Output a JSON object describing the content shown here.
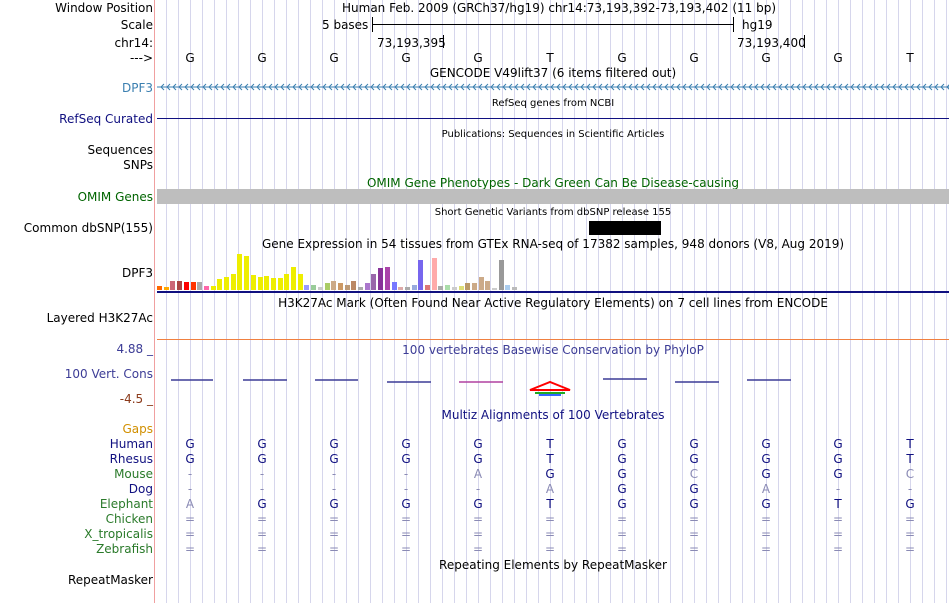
{
  "colors": {
    "dpf3_blue": "#3b7fb0",
    "navy": "#101080",
    "omim_green": "#006400",
    "gaps_orange": "#d18f00",
    "species_green": "#2a7a2a",
    "faint": "#7f7fa8",
    "conservation": "#3c3c96"
  },
  "labels": {
    "window_position": "Window Position",
    "scale": "Scale",
    "chrom": "chr14:",
    "arrow": "--->",
    "dpf3": "DPF3",
    "refseq_curated": "RefSeq Curated",
    "sequences": "Sequences",
    "snps": "SNPs",
    "omim_genes": "OMIM Genes",
    "common_dbsnp": "Common dbSNP(155)",
    "dpf3_expr": "DPF3",
    "layered_h3k27ac": "Layered H3K27Ac",
    "cons_max": "4.88 _",
    "cons_label": "100 Vert. Cons",
    "cons_min": "-4.5 _",
    "gaps": "Gaps",
    "repeatmasker": "RepeatMasker"
  },
  "header": {
    "position": "Human Feb. 2009 (GRCh37/hg19)   chr14:73,193,392-73,193,402 (11 bp)",
    "scale_text": "5 bases",
    "assembly": "hg19",
    "coord1": "73,193,395",
    "coord2": "73,193,400"
  },
  "bases": [
    "G",
    "G",
    "G",
    "G",
    "G",
    "T",
    "G",
    "G",
    "G",
    "G",
    "T"
  ],
  "tracks": {
    "gencode": "GENCODE V49lift37 (6 items filtered out)",
    "refseq": "RefSeq genes from NCBI",
    "publications": "Publications: Sequences in Scientific Articles",
    "omim": "OMIM Gene Phenotypes - Dark Green Can Be Disease-causing",
    "dbsnp": "Short Genetic Variants from dbSNP release 155",
    "gtex": "Gene Expression in 54 tissues from GTEx RNA-seq of 17382 samples, 948 donors (V8, Aug 2019)",
    "h3k27ac": "H3K27Ac Mark (Often Found Near Active Regulatory Elements) on 7 cell lines from ENCODE",
    "phylop": "100 vertebrates Basewise Conservation by PhyloP",
    "multiz": "Multiz Alignments of 100 Vertebrates",
    "rmsk": "Repeating Elements by RepeatMasker"
  },
  "gtex_bars": [
    {
      "h": 4,
      "c": "#ff6600"
    },
    {
      "h": 3,
      "c": "#ffaa00"
    },
    {
      "h": 9,
      "c": "#cc6677"
    },
    {
      "h": 9,
      "c": "#aa4444"
    },
    {
      "h": 8,
      "c": "#ff0000"
    },
    {
      "h": 8,
      "c": "#ff3300"
    },
    {
      "h": 8,
      "c": "#aaaaaa"
    },
    {
      "h": 4,
      "c": "#ff66aa"
    },
    {
      "h": 4,
      "c": "#eeee00"
    },
    {
      "h": 11,
      "c": "#eeee00"
    },
    {
      "h": 13,
      "c": "#eeee00"
    },
    {
      "h": 16,
      "c": "#eeee00"
    },
    {
      "h": 36,
      "c": "#eeee00"
    },
    {
      "h": 34,
      "c": "#eeee00"
    },
    {
      "h": 15,
      "c": "#eeee00"
    },
    {
      "h": 13,
      "c": "#eeee00"
    },
    {
      "h": 14,
      "c": "#eeee00"
    },
    {
      "h": 12,
      "c": "#eeee00"
    },
    {
      "h": 12,
      "c": "#eeee00"
    },
    {
      "h": 16,
      "c": "#eeee00"
    },
    {
      "h": 23,
      "c": "#eeee00"
    },
    {
      "h": 16,
      "c": "#eeee00"
    },
    {
      "h": 5,
      "c": "#9999ff"
    },
    {
      "h": 5,
      "c": "#99cc99"
    },
    {
      "h": 3,
      "c": "#cccccc"
    },
    {
      "h": 7,
      "c": "#aacc66"
    },
    {
      "h": 9,
      "c": "#ccaa88"
    },
    {
      "h": 7,
      "c": "#cc9966"
    },
    {
      "h": 5,
      "c": "#bb9977"
    },
    {
      "h": 9,
      "c": "#bb8866"
    },
    {
      "h": 3,
      "c": "#aaaaaa"
    },
    {
      "h": 7,
      "c": "#aa77cc"
    },
    {
      "h": 16,
      "c": "#9966aa"
    },
    {
      "h": 22,
      "c": "#883399"
    },
    {
      "h": 23,
      "c": "#aa44aa"
    },
    {
      "h": 8,
      "c": "#7777ff"
    },
    {
      "h": 3,
      "c": "#ddaaaa"
    },
    {
      "h": 3,
      "c": "#aaaaaa"
    },
    {
      "h": 5,
      "c": "#99aadd"
    },
    {
      "h": 30,
      "c": "#7766ee"
    },
    {
      "h": 5,
      "c": "#dd7777"
    },
    {
      "h": 32,
      "c": "#ffaaaa"
    },
    {
      "h": 4,
      "c": "#aaaaaa"
    },
    {
      "h": 5,
      "c": "#aaddaa"
    },
    {
      "h": 3,
      "c": "#cccccc"
    },
    {
      "h": 4,
      "c": "#dddd77"
    },
    {
      "h": 7,
      "c": "#bb9966"
    },
    {
      "h": 7,
      "c": "#ccaa88"
    },
    {
      "h": 13,
      "c": "#ccaa88"
    },
    {
      "h": 9,
      "c": "#ccaa88"
    },
    {
      "h": 2,
      "c": "#cccccc"
    },
    {
      "h": 30,
      "c": "#999999"
    },
    {
      "h": 5,
      "c": "#aaccee"
    },
    {
      "h": 3,
      "c": "#bbbbbb"
    }
  ],
  "species": [
    {
      "name": "Human",
      "color": "#101080",
      "bases": [
        "G",
        "G",
        "G",
        "G",
        "G",
        "T",
        "G",
        "G",
        "G",
        "G",
        "T"
      ],
      "faint": false
    },
    {
      "name": "Rhesus",
      "color": "#101080",
      "bases": [
        "G",
        "G",
        "G",
        "G",
        "G",
        "T",
        "G",
        "G",
        "G",
        "G",
        "T"
      ],
      "faint": false
    },
    {
      "name": "Mouse",
      "color": "#2a7a2a",
      "bases": [
        "-",
        "-",
        "-",
        "-",
        "A",
        "G",
        "G",
        "C",
        "G",
        "G",
        "C"
      ],
      "faint": true
    },
    {
      "name": "Dog",
      "color": "#101080",
      "bases": [
        "-",
        "-",
        "-",
        "-",
        "-",
        "A",
        "G",
        "G",
        "A",
        "-",
        "-"
      ],
      "faint": true
    },
    {
      "name": "Elephant",
      "color": "#2a7a2a",
      "bases": [
        "A",
        "G",
        "G",
        "G",
        "G",
        "T",
        "G",
        "G",
        "G",
        "T",
        "G"
      ],
      "faint": false
    },
    {
      "name": "Chicken",
      "color": "#2a7a2a",
      "bases": [
        "=",
        "=",
        "=",
        "=",
        "=",
        "=",
        "=",
        "=",
        "=",
        "=",
        "="
      ],
      "faint": true
    },
    {
      "name": "X_tropicalis",
      "color": "#2a7a2a",
      "bases": [
        "=",
        "=",
        "=",
        "=",
        "=",
        "=",
        "=",
        "=",
        "=",
        "=",
        "="
      ],
      "faint": true
    },
    {
      "name": "Zebrafish",
      "color": "#2a7a2a",
      "bases": [
        "=",
        "=",
        "=",
        "=",
        "=",
        "=",
        "=",
        "=",
        "=",
        "=",
        "="
      ],
      "faint": true
    }
  ]
}
